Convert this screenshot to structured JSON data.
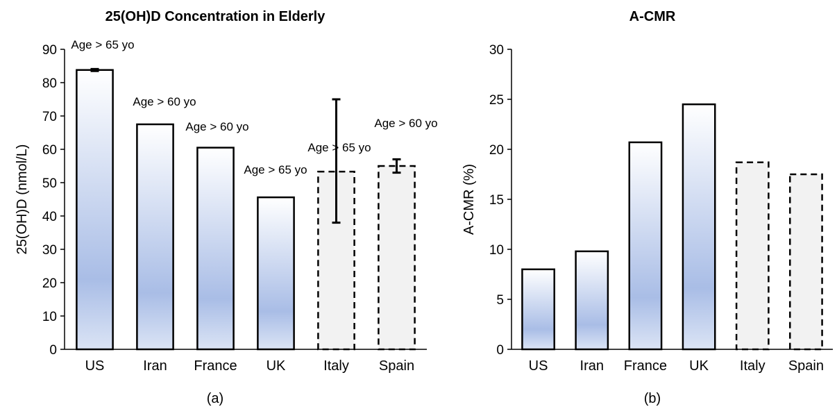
{
  "chart_data": [
    {
      "type": "bar",
      "title": "25(OH)D Concentration in Elderly",
      "y_label": "25(OH)D (nmol/L)",
      "caption": "(a)",
      "categories": [
        "US",
        "Iran",
        "France",
        "UK",
        "Italy",
        "Spain"
      ],
      "values": [
        83.8,
        67.5,
        60.5,
        45.6,
        53.3,
        55
      ],
      "error_low": [
        0.3,
        null,
        null,
        null,
        15.3,
        2
      ],
      "error_high": [
        0.3,
        null,
        null,
        null,
        21.7,
        2
      ],
      "annotations": [
        "Age > 65 yo",
        "Age > 60 yo",
        "Age > 60 yo",
        "Age > 65 yo",
        "Age > 65 yo",
        "Age > 60 yo"
      ],
      "bar_style": [
        "gradient",
        "gradient",
        "gradient",
        "gradient",
        "dashed",
        "dashed"
      ],
      "color": "#a9bde6",
      "ylim": [
        0,
        90
      ],
      "yticks": [
        0,
        10,
        20,
        30,
        40,
        50,
        60,
        70,
        80,
        90
      ]
    },
    {
      "type": "bar",
      "title": "A-CMR",
      "y_label": "A-CMR (%)",
      "caption": "(b)",
      "categories": [
        "US",
        "Iran",
        "France",
        "UK",
        "Italy",
        "Spain"
      ],
      "values": [
        8.0,
        9.8,
        20.7,
        24.5,
        18.7,
        17.5
      ],
      "bar_style": [
        "gradient",
        "gradient",
        "gradient",
        "gradient",
        "dashed",
        "dashed"
      ],
      "color": "#a9bde6",
      "ylim": [
        0,
        30
      ],
      "yticks": [
        0,
        5,
        10,
        15,
        20,
        25,
        30
      ]
    }
  ]
}
